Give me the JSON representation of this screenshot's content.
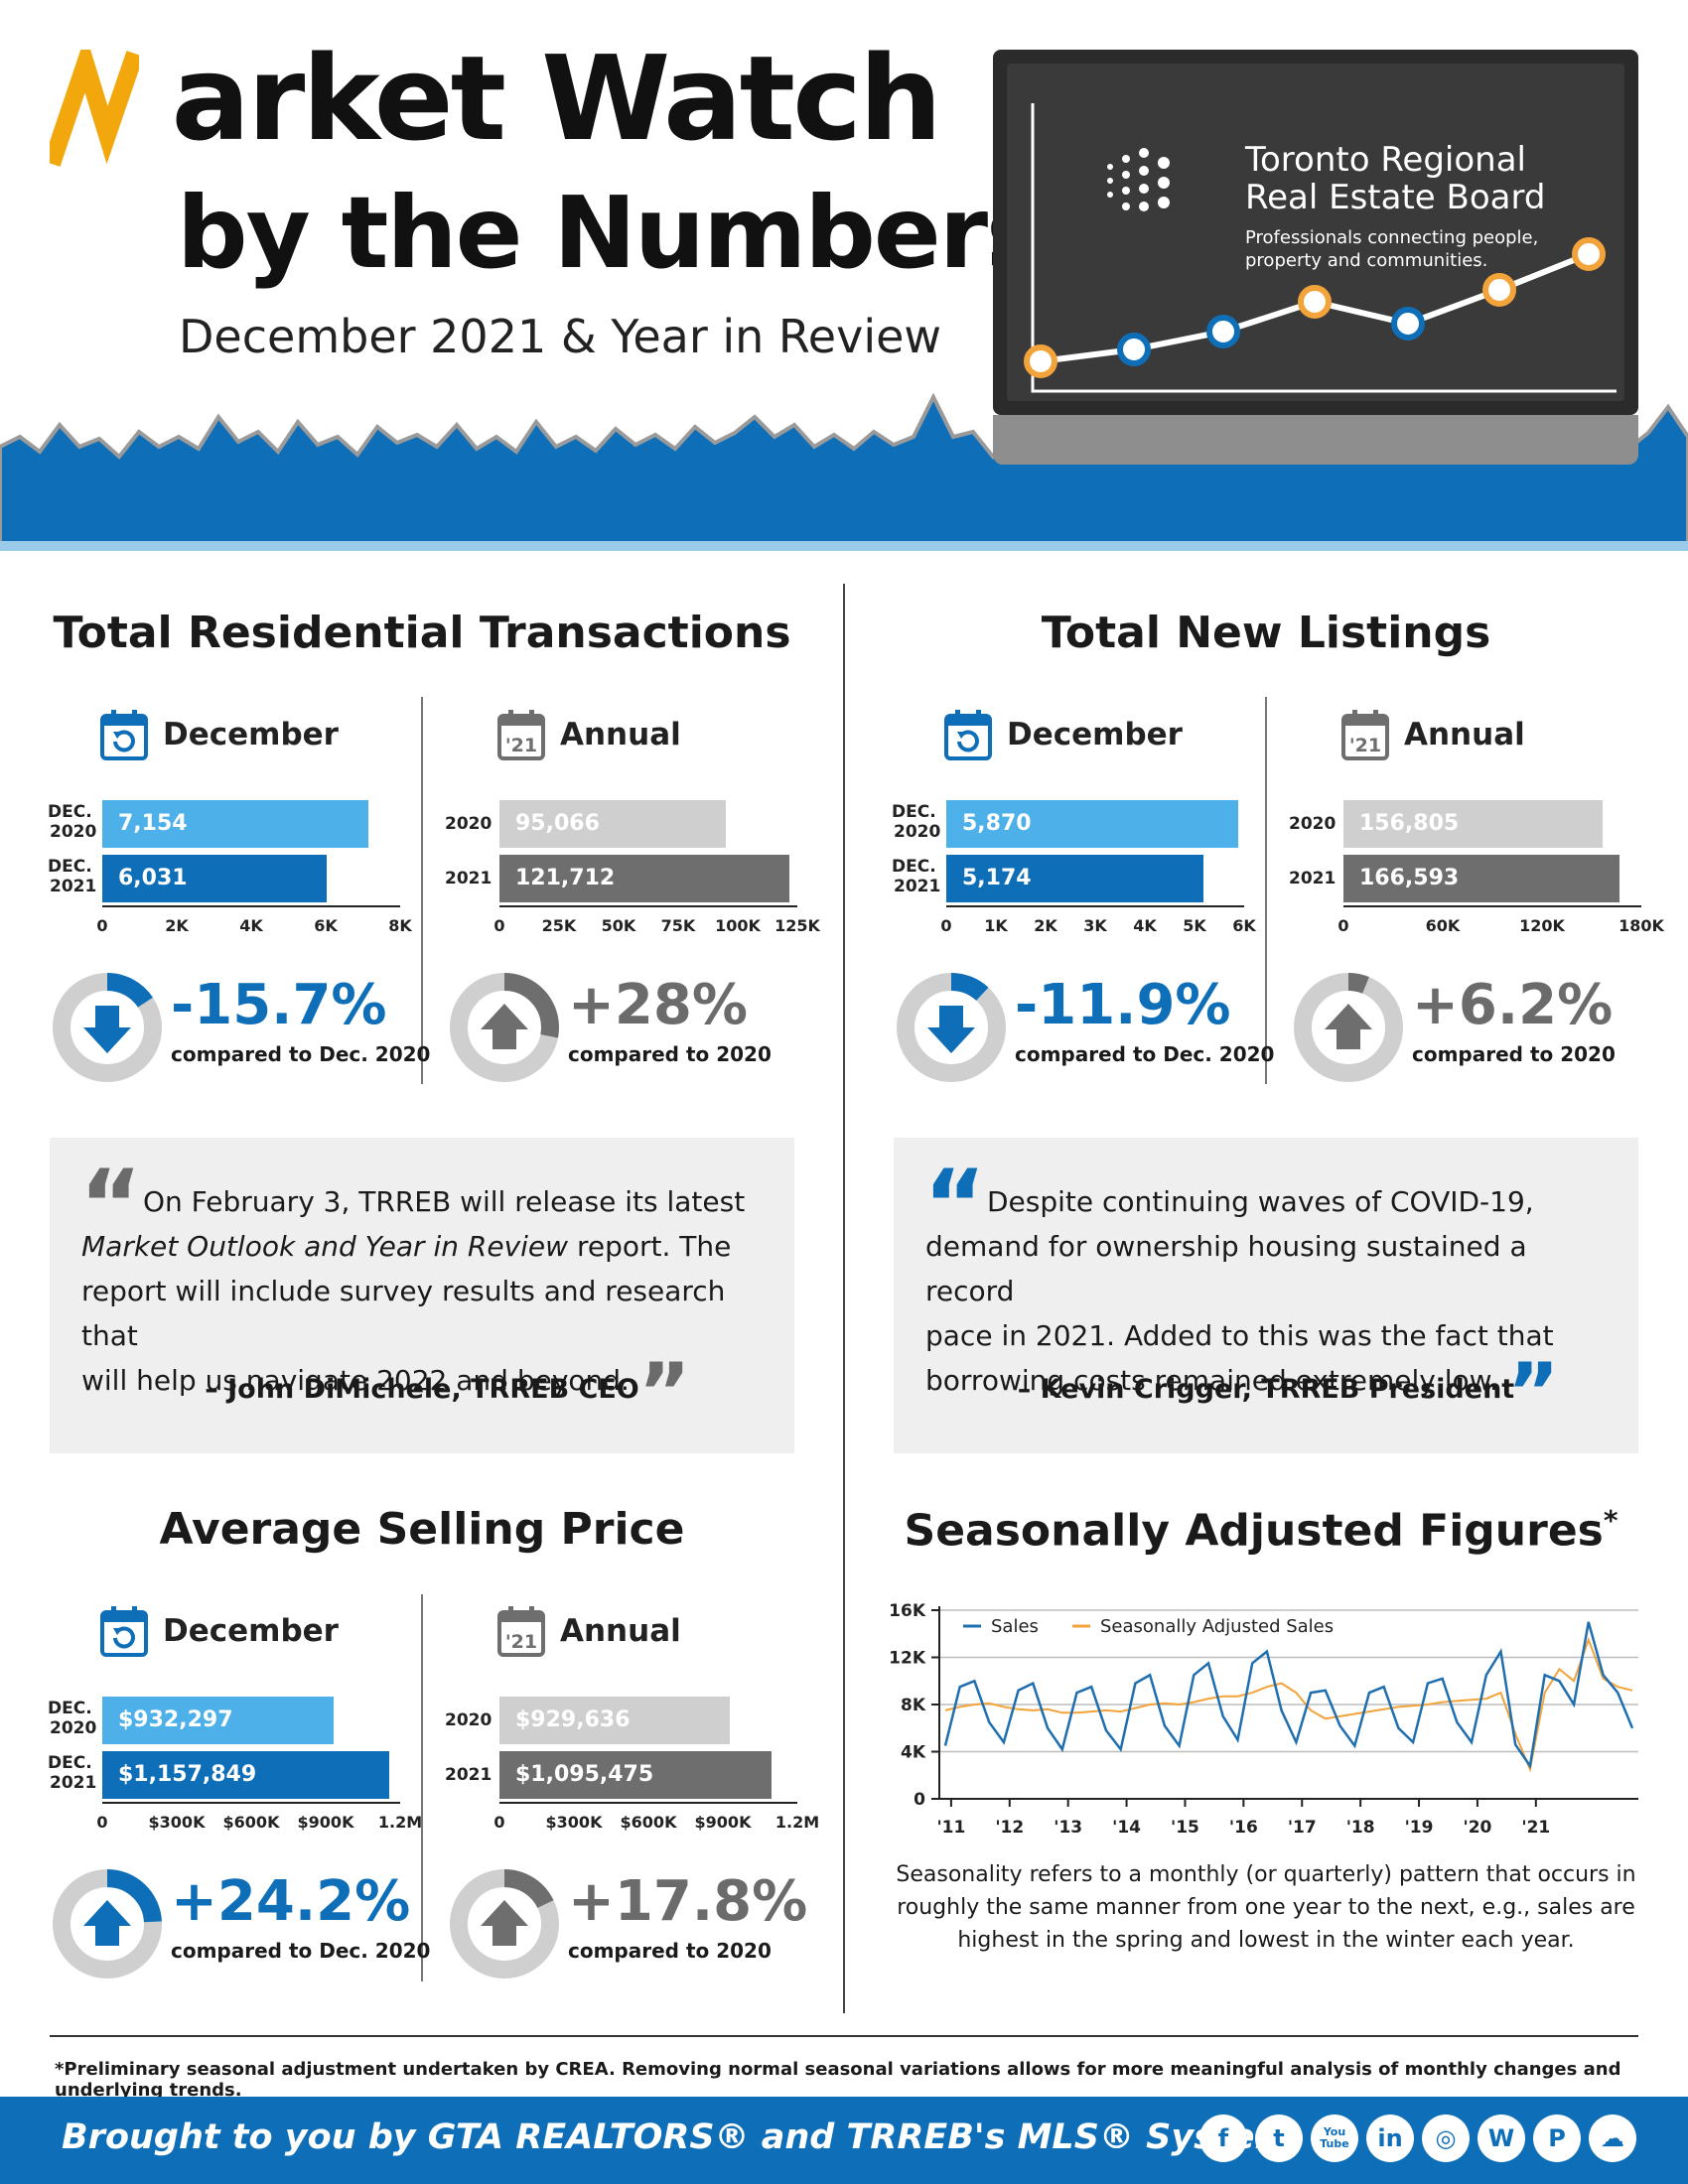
{
  "header": {
    "title_line1": "Market Watch",
    "title_line2": "by the Numbers",
    "subtitle": "December 2021 & Year in Review",
    "org_name_line1": "Toronto Regional",
    "org_name_line2": "Real Estate Board",
    "org_tagline_line1": "Professionals connecting people,",
    "org_tagline_line2": "property and communities."
  },
  "transactions": {
    "title": "Total Residential Transactions",
    "december": {
      "label": "December",
      "rows": [
        {
          "label1": "DEC.",
          "label2": "2020",
          "value_text": "7,154",
          "value": 7154
        },
        {
          "label1": "DEC.",
          "label2": "2021",
          "value_text": "6,031",
          "value": 6031
        }
      ],
      "ticks": [
        "0",
        "2K",
        "4K",
        "6K",
        "8K"
      ],
      "max": 8000,
      "change": "-15.7%",
      "change_fraction": 0.157,
      "compared": "compared to Dec. 2020"
    },
    "annual": {
      "label": "Annual",
      "cal_year": "'21",
      "rows": [
        {
          "label": "2020",
          "value_text": "95,066",
          "value": 95066
        },
        {
          "label": "2021",
          "value_text": "121,712",
          "value": 121712
        }
      ],
      "ticks": [
        "0",
        "25K",
        "50K",
        "75K",
        "100K",
        "125K"
      ],
      "max": 125000,
      "change": "+28%",
      "change_fraction": 0.28,
      "compared": "compared to 2020"
    }
  },
  "listings": {
    "title": "Total New Listings",
    "december": {
      "label": "December",
      "rows": [
        {
          "label1": "DEC.",
          "label2": "2020",
          "value_text": "5,870",
          "value": 5870
        },
        {
          "label1": "DEC.",
          "label2": "2021",
          "value_text": "5,174",
          "value": 5174
        }
      ],
      "ticks": [
        "0",
        "1K",
        "2K",
        "3K",
        "4K",
        "5K",
        "6K"
      ],
      "max": 6000,
      "change": "-11.9%",
      "change_fraction": 0.119,
      "compared": "compared to Dec. 2020"
    },
    "annual": {
      "label": "Annual",
      "cal_year": "'21",
      "rows": [
        {
          "label": "2020",
          "value_text": "156,805",
          "value": 156805
        },
        {
          "label": "2021",
          "value_text": "166,593",
          "value": 166593
        }
      ],
      "ticks": [
        "0",
        "60K",
        "120K",
        "180K"
      ],
      "max": 180000,
      "change": "+6.2%",
      "change_fraction": 0.062,
      "compared": "compared to 2020"
    }
  },
  "quotes": [
    {
      "lines": [
        "On February 3, TRREB will release its latest",
        "Market Outlook and Year in Review report. The",
        "report will include survey results and research that",
        "will help us navigate 2022 and beyond."
      ],
      "italic_phrase": "Market Outlook and Year in Review",
      "attribution": "– John DiMichele, TRREB CEO"
    },
    {
      "lines": [
        "Despite continuing waves of COVID-19,",
        "demand for ownership housing sustained a record",
        "pace in 2021. Added to this was the fact that",
        "borrowing costs remained extremely low."
      ],
      "attribution": "– Kevin Crigger, TRREB President"
    }
  ],
  "price": {
    "title": "Average Selling Price",
    "december": {
      "label": "December",
      "rows": [
        {
          "label1": "DEC.",
          "label2": "2020",
          "value_text": "$932,297",
          "value": 932297
        },
        {
          "label1": "DEC.",
          "label2": "2021",
          "value_text": "$1,157,849",
          "value": 1157849
        }
      ],
      "ticks": [
        "0",
        "$300K",
        "$600K",
        "$900K",
        "1.2M"
      ],
      "max": 1200000,
      "change": "+24.2%",
      "change_fraction": 0.242,
      "compared": "compared to Dec. 2020"
    },
    "annual": {
      "label": "Annual",
      "cal_year": "'21",
      "rows": [
        {
          "label": "2020",
          "value_text": "$929,636",
          "value": 929636
        },
        {
          "label": "2021",
          "value_text": "$1,095,475",
          "value": 1095475
        }
      ],
      "ticks": [
        "0",
        "$300K",
        "$600K",
        "$900K",
        "1.2M"
      ],
      "max": 1200000,
      "change": "+17.8%",
      "change_fraction": 0.178,
      "compared": "compared to 2020"
    }
  },
  "seasonal": {
    "title": "Seasonally Adjusted Figures",
    "title_mark": "*",
    "description_lines": [
      "Seasonality refers to a monthly (or quarterly) pattern that occurs in",
      "roughly the same manner from one year to the next, e.g., sales are",
      "highest in the spring and lowest in the winter each year."
    ]
  },
  "chart_data": {
    "type": "line",
    "title": "",
    "xlabel": "",
    "ylabel": "",
    "ylim": [
      0,
      16000
    ],
    "yticks": [
      "0",
      "4K",
      "8K",
      "12K",
      "16K"
    ],
    "xticks": [
      "'11",
      "'12",
      "'13",
      "'14",
      "'15",
      "'16",
      "'17",
      "'18",
      "'19",
      "'20",
      "'21"
    ],
    "x_start_year": 2010.9,
    "x_step_years": 0.25,
    "legend_position": "top-left",
    "colors": {
      "sales": "#1f6fb0",
      "sa": "#f2a33a"
    },
    "series": [
      {
        "name": "Sales",
        "values": [
          4500,
          9500,
          10000,
          6500,
          4800,
          9200,
          9800,
          6000,
          4200,
          9000,
          9500,
          5800,
          4200,
          9800,
          10500,
          6200,
          4500,
          10500,
          11500,
          7000,
          5000,
          11500,
          12500,
          7500,
          4800,
          9000,
          9200,
          6200,
          4500,
          9000,
          9500,
          6000,
          4800,
          9800,
          10200,
          6500,
          4800,
          10500,
          12500,
          4600,
          2800,
          10500,
          10000,
          8000,
          15000,
          10500,
          9000,
          6000
        ]
      },
      {
        "name": "Seasonally Adjusted Sales",
        "values": [
          7500,
          7800,
          8000,
          8100,
          7800,
          7600,
          7500,
          7600,
          7300,
          7300,
          7400,
          7500,
          7400,
          7700,
          8000,
          8100,
          8000,
          8200,
          8500,
          8700,
          8700,
          9000,
          9500,
          9800,
          9000,
          7500,
          6800,
          7000,
          7200,
          7400,
          7600,
          7800,
          7900,
          8000,
          8200,
          8300,
          8400,
          8500,
          9000,
          5500,
          2500,
          9000,
          11000,
          10000,
          13500,
          10200,
          9500,
          9200
        ]
      }
    ]
  },
  "footnote": "*Preliminary seasonal adjustment undertaken by CREA. Removing normal seasonal variations allows for more meaningful analysis of monthly changes and underlying trends.",
  "footer": {
    "text": "Brought to you by GTA REALTORS® and TRREB's MLS® System",
    "social_icons": [
      "f",
      "t",
      "You Tube",
      "in",
      "◎",
      "W",
      "P",
      "☁"
    ]
  }
}
